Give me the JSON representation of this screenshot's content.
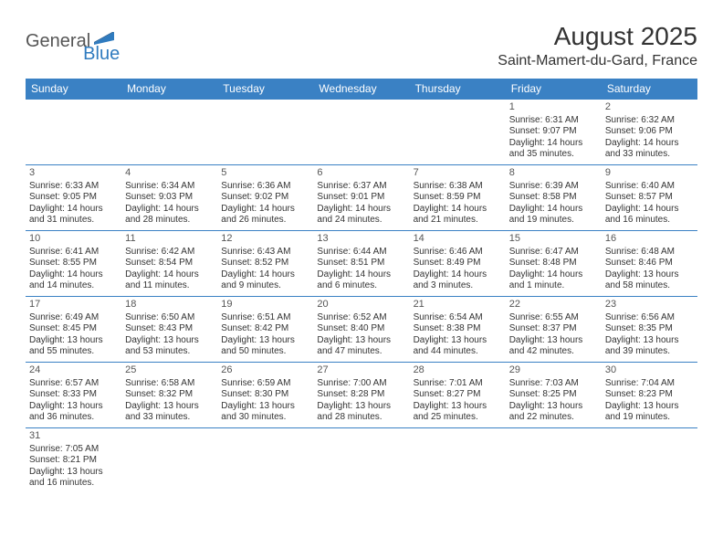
{
  "logo": {
    "part1": "General",
    "part2": "Blue"
  },
  "title": "August 2025",
  "location": "Saint-Mamert-du-Gard, France",
  "colors": {
    "header_bg": "#3a81c4",
    "header_text": "#ffffff",
    "border": "#3a81c4",
    "logo_gray": "#555555",
    "logo_blue": "#2f7bbf",
    "text": "#333333",
    "background": "#ffffff"
  },
  "calendar": {
    "type": "table",
    "columns": [
      "Sunday",
      "Monday",
      "Tuesday",
      "Wednesday",
      "Thursday",
      "Friday",
      "Saturday"
    ],
    "weeks": [
      [
        null,
        null,
        null,
        null,
        null,
        {
          "d": "1",
          "sr": "Sunrise: 6:31 AM",
          "ss": "Sunset: 9:07 PM",
          "dl1": "Daylight: 14 hours",
          "dl2": "and 35 minutes."
        },
        {
          "d": "2",
          "sr": "Sunrise: 6:32 AM",
          "ss": "Sunset: 9:06 PM",
          "dl1": "Daylight: 14 hours",
          "dl2": "and 33 minutes."
        }
      ],
      [
        {
          "d": "3",
          "sr": "Sunrise: 6:33 AM",
          "ss": "Sunset: 9:05 PM",
          "dl1": "Daylight: 14 hours",
          "dl2": "and 31 minutes."
        },
        {
          "d": "4",
          "sr": "Sunrise: 6:34 AM",
          "ss": "Sunset: 9:03 PM",
          "dl1": "Daylight: 14 hours",
          "dl2": "and 28 minutes."
        },
        {
          "d": "5",
          "sr": "Sunrise: 6:36 AM",
          "ss": "Sunset: 9:02 PM",
          "dl1": "Daylight: 14 hours",
          "dl2": "and 26 minutes."
        },
        {
          "d": "6",
          "sr": "Sunrise: 6:37 AM",
          "ss": "Sunset: 9:01 PM",
          "dl1": "Daylight: 14 hours",
          "dl2": "and 24 minutes."
        },
        {
          "d": "7",
          "sr": "Sunrise: 6:38 AM",
          "ss": "Sunset: 8:59 PM",
          "dl1": "Daylight: 14 hours",
          "dl2": "and 21 minutes."
        },
        {
          "d": "8",
          "sr": "Sunrise: 6:39 AM",
          "ss": "Sunset: 8:58 PM",
          "dl1": "Daylight: 14 hours",
          "dl2": "and 19 minutes."
        },
        {
          "d": "9",
          "sr": "Sunrise: 6:40 AM",
          "ss": "Sunset: 8:57 PM",
          "dl1": "Daylight: 14 hours",
          "dl2": "and 16 minutes."
        }
      ],
      [
        {
          "d": "10",
          "sr": "Sunrise: 6:41 AM",
          "ss": "Sunset: 8:55 PM",
          "dl1": "Daylight: 14 hours",
          "dl2": "and 14 minutes."
        },
        {
          "d": "11",
          "sr": "Sunrise: 6:42 AM",
          "ss": "Sunset: 8:54 PM",
          "dl1": "Daylight: 14 hours",
          "dl2": "and 11 minutes."
        },
        {
          "d": "12",
          "sr": "Sunrise: 6:43 AM",
          "ss": "Sunset: 8:52 PM",
          "dl1": "Daylight: 14 hours",
          "dl2": "and 9 minutes."
        },
        {
          "d": "13",
          "sr": "Sunrise: 6:44 AM",
          "ss": "Sunset: 8:51 PM",
          "dl1": "Daylight: 14 hours",
          "dl2": "and 6 minutes."
        },
        {
          "d": "14",
          "sr": "Sunrise: 6:46 AM",
          "ss": "Sunset: 8:49 PM",
          "dl1": "Daylight: 14 hours",
          "dl2": "and 3 minutes."
        },
        {
          "d": "15",
          "sr": "Sunrise: 6:47 AM",
          "ss": "Sunset: 8:48 PM",
          "dl1": "Daylight: 14 hours",
          "dl2": "and 1 minute."
        },
        {
          "d": "16",
          "sr": "Sunrise: 6:48 AM",
          "ss": "Sunset: 8:46 PM",
          "dl1": "Daylight: 13 hours",
          "dl2": "and 58 minutes."
        }
      ],
      [
        {
          "d": "17",
          "sr": "Sunrise: 6:49 AM",
          "ss": "Sunset: 8:45 PM",
          "dl1": "Daylight: 13 hours",
          "dl2": "and 55 minutes."
        },
        {
          "d": "18",
          "sr": "Sunrise: 6:50 AM",
          "ss": "Sunset: 8:43 PM",
          "dl1": "Daylight: 13 hours",
          "dl2": "and 53 minutes."
        },
        {
          "d": "19",
          "sr": "Sunrise: 6:51 AM",
          "ss": "Sunset: 8:42 PM",
          "dl1": "Daylight: 13 hours",
          "dl2": "and 50 minutes."
        },
        {
          "d": "20",
          "sr": "Sunrise: 6:52 AM",
          "ss": "Sunset: 8:40 PM",
          "dl1": "Daylight: 13 hours",
          "dl2": "and 47 minutes."
        },
        {
          "d": "21",
          "sr": "Sunrise: 6:54 AM",
          "ss": "Sunset: 8:38 PM",
          "dl1": "Daylight: 13 hours",
          "dl2": "and 44 minutes."
        },
        {
          "d": "22",
          "sr": "Sunrise: 6:55 AM",
          "ss": "Sunset: 8:37 PM",
          "dl1": "Daylight: 13 hours",
          "dl2": "and 42 minutes."
        },
        {
          "d": "23",
          "sr": "Sunrise: 6:56 AM",
          "ss": "Sunset: 8:35 PM",
          "dl1": "Daylight: 13 hours",
          "dl2": "and 39 minutes."
        }
      ],
      [
        {
          "d": "24",
          "sr": "Sunrise: 6:57 AM",
          "ss": "Sunset: 8:33 PM",
          "dl1": "Daylight: 13 hours",
          "dl2": "and 36 minutes."
        },
        {
          "d": "25",
          "sr": "Sunrise: 6:58 AM",
          "ss": "Sunset: 8:32 PM",
          "dl1": "Daylight: 13 hours",
          "dl2": "and 33 minutes."
        },
        {
          "d": "26",
          "sr": "Sunrise: 6:59 AM",
          "ss": "Sunset: 8:30 PM",
          "dl1": "Daylight: 13 hours",
          "dl2": "and 30 minutes."
        },
        {
          "d": "27",
          "sr": "Sunrise: 7:00 AM",
          "ss": "Sunset: 8:28 PM",
          "dl1": "Daylight: 13 hours",
          "dl2": "and 28 minutes."
        },
        {
          "d": "28",
          "sr": "Sunrise: 7:01 AM",
          "ss": "Sunset: 8:27 PM",
          "dl1": "Daylight: 13 hours",
          "dl2": "and 25 minutes."
        },
        {
          "d": "29",
          "sr": "Sunrise: 7:03 AM",
          "ss": "Sunset: 8:25 PM",
          "dl1": "Daylight: 13 hours",
          "dl2": "and 22 minutes."
        },
        {
          "d": "30",
          "sr": "Sunrise: 7:04 AM",
          "ss": "Sunset: 8:23 PM",
          "dl1": "Daylight: 13 hours",
          "dl2": "and 19 minutes."
        }
      ],
      [
        {
          "d": "31",
          "sr": "Sunrise: 7:05 AM",
          "ss": "Sunset: 8:21 PM",
          "dl1": "Daylight: 13 hours",
          "dl2": "and 16 minutes."
        },
        null,
        null,
        null,
        null,
        null,
        null
      ]
    ]
  }
}
